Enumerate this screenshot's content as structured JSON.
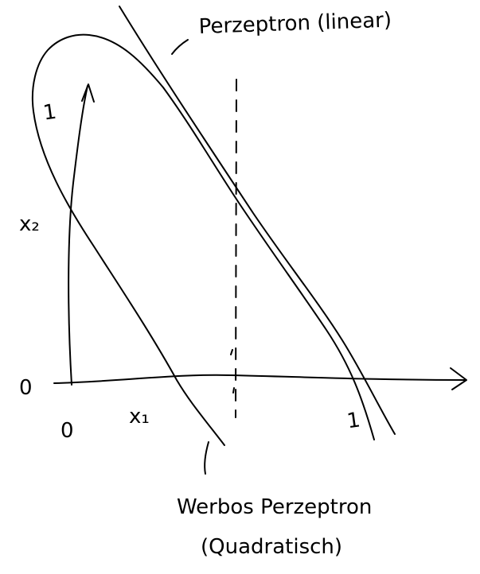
{
  "labels": {
    "perzeptron_linear": "Perzeptron (linear)",
    "werbos_line1": "Werbos Perzeptron",
    "werbos_line2": "(Quadratisch)",
    "x1_axis": "x₁",
    "x2_axis": "x₂",
    "origin_x": "0",
    "origin_y": "0",
    "region_left": "1",
    "region_right": "1"
  }
}
